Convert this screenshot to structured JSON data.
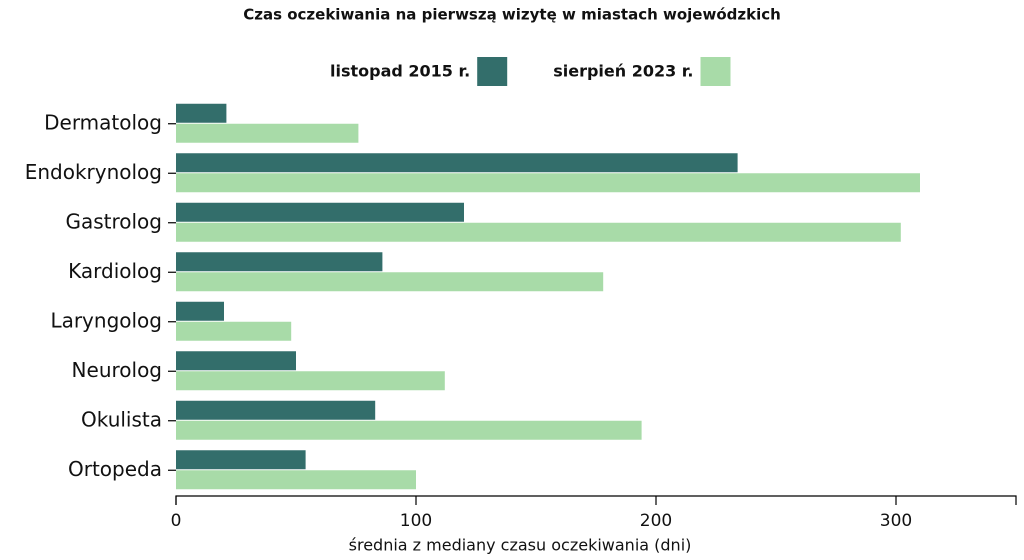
{
  "chart_data": {
    "type": "bar",
    "orientation": "horizontal",
    "title": "Czas oczekiwania na pierwszą wizytę w miastach wojewódzkich",
    "x_label": "średnia z mediany czasu oczekiwania (dni)",
    "categories": [
      "Dermatolog",
      "Endokrynolog",
      "Gastrolog",
      "Kardiolog",
      "Laryngolog",
      "Neurolog",
      "Okulista",
      "Ortopeda"
    ],
    "series": [
      {
        "name": "listopad 2015 r.",
        "color": "#336e6b",
        "values": [
          21,
          234,
          120,
          86,
          20,
          50,
          83,
          54
        ]
      },
      {
        "name": "sierpień 2023 r.",
        "color": "#a8dba8",
        "values": [
          76,
          310,
          302,
          178,
          48,
          112,
          194,
          100
        ]
      }
    ],
    "xlim": [
      0,
      350
    ],
    "xticks": [
      0,
      100,
      200,
      300
    ],
    "legend": "top"
  }
}
